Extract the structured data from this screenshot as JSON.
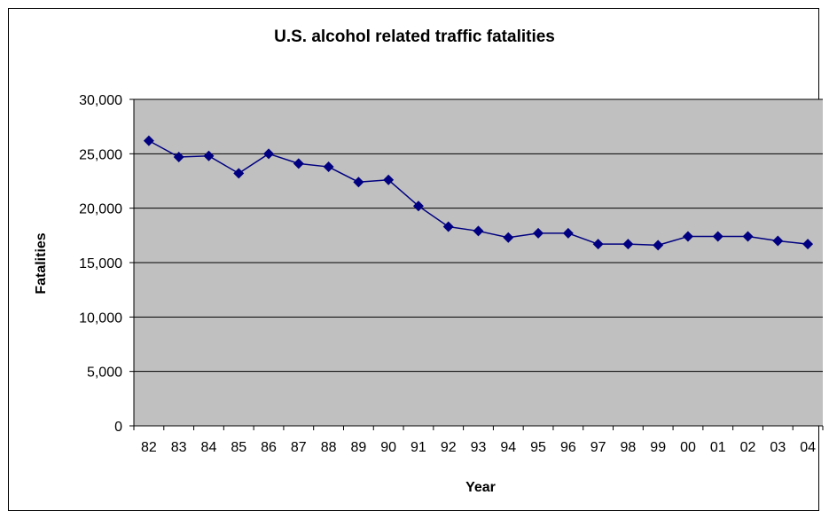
{
  "chart_data": {
    "type": "line",
    "title": "U.S. alcohol related traffic fatalities",
    "xlabel": "Year",
    "ylabel": "Fatalities",
    "x": [
      "82",
      "83",
      "84",
      "85",
      "86",
      "87",
      "88",
      "89",
      "90",
      "91",
      "92",
      "93",
      "94",
      "95",
      "96",
      "97",
      "98",
      "99",
      "00",
      "01",
      "02",
      "03",
      "04"
    ],
    "series": [
      {
        "values": [
          26200,
          24700,
          24800,
          23200,
          25000,
          24100,
          23800,
          22400,
          22600,
          20200,
          18300,
          17900,
          17300,
          17700,
          17700,
          16700,
          16700,
          16600,
          17400,
          17400,
          17400,
          17000,
          16700
        ]
      }
    ],
    "ylim": [
      0,
      30000
    ],
    "yticks": [
      0,
      5000,
      10000,
      15000,
      20000,
      25000,
      30000
    ],
    "ytick_labels": [
      "0",
      "5,000",
      "10,000",
      "15,000",
      "20,000",
      "25,000",
      "30,000"
    ],
    "grid": "horizontal",
    "legend": "none",
    "colors": {
      "line": "#000080",
      "marker": "#000080",
      "plot_background": "#c0c0c0",
      "gridline": "#000000"
    }
  }
}
